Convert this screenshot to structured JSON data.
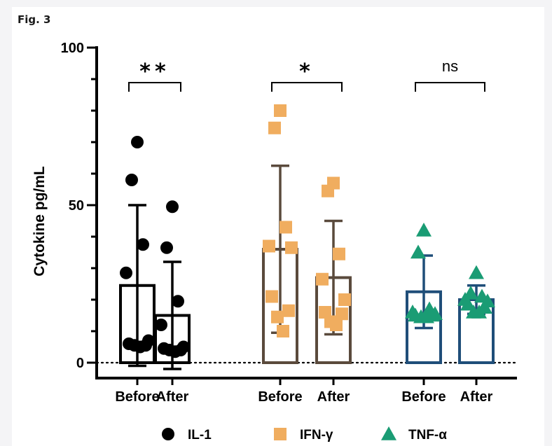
{
  "figure_label": "Fig. 3",
  "chart_data": {
    "type": "bar",
    "ylabel": "Cytokine pg/mL",
    "ylim": [
      0,
      100
    ],
    "yticks": [
      0,
      50,
      100
    ],
    "categories": [
      "Before",
      "After",
      "Before",
      "After",
      "Before",
      "After"
    ],
    "groups": [
      {
        "name": "IL-1",
        "color": "#000000",
        "marker": "circle",
        "bar_stroke": "#000000",
        "comparison": "**",
        "bars": [
          {
            "label": "Before",
            "mean": 24.5,
            "sd": 25.5,
            "points": [
              70,
              58,
              37.5,
              28.5,
              7,
              6,
              5.5,
              5.5,
              5
            ]
          },
          {
            "label": "After",
            "mean": 15,
            "sd": 17,
            "points": [
              49.5,
              36.5,
              19.5,
              12,
              5,
              4.5,
              4,
              4,
              3.5
            ]
          }
        ]
      },
      {
        "name": "IFN-γ",
        "color": "#f0ad5f",
        "marker": "square",
        "bar_stroke": "#5a4a3c",
        "comparison": "*",
        "bars": [
          {
            "label": "Before",
            "mean": 36,
            "sd": 26.5,
            "points": [
              80,
              74.5,
              43,
              37,
              36.5,
              21,
              16.5,
              14.5,
              10
            ]
          },
          {
            "label": "After",
            "mean": 27,
            "sd": 18,
            "points": [
              57,
              54.5,
              34.5,
              26.5,
              20,
              16,
              15.5,
              13,
              12
            ]
          }
        ]
      },
      {
        "name": "TNF-α",
        "color": "#1a9c74",
        "marker": "triangle",
        "bar_stroke": "#1f4e79",
        "comparison": "ns",
        "bars": [
          {
            "label": "Before",
            "mean": 22.5,
            "sd": 11.5,
            "points": [
              42,
              35,
              17,
              16,
              15.5,
              15,
              15,
              14.5,
              14.5
            ]
          },
          {
            "label": "After",
            "mean": 20,
            "sd": 4.5,
            "points": [
              28.5,
              22,
              21,
              20,
              19.5,
              18.5,
              17.5,
              16,
              16
            ]
          }
        ]
      }
    ],
    "legend": [
      "IL-1",
      "IFN-γ",
      "TNF-α"
    ],
    "legend_position": "bottom",
    "baseline_dotted": true
  }
}
